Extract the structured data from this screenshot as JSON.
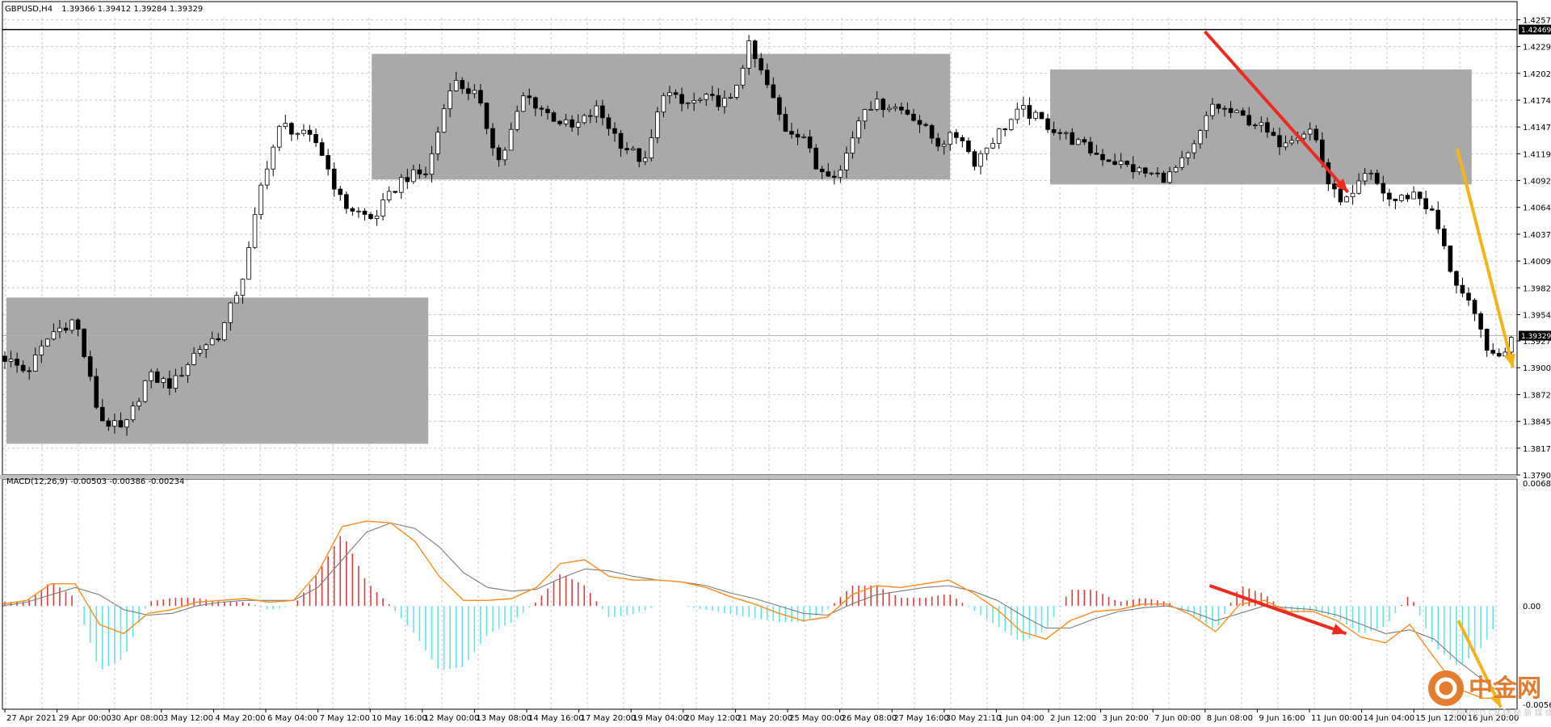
{
  "header": {
    "symbol": "GBPUSD,H4",
    "ohlc": "1.39366 1.39412 1.39284 1.39329",
    "macd_label": "MACD(12,26,9) -0.00503 -0.00386 -0.00234"
  },
  "price_axis": {
    "ticks": [
      "1.42570",
      "1.42295",
      "1.42020",
      "1.41745",
      "1.41470",
      "1.41195",
      "1.40920",
      "1.40645",
      "1.40370",
      "1.40095",
      "1.39820",
      "1.39545",
      "1.39275",
      "1.39000",
      "1.38725",
      "1.38450",
      "1.38175",
      "1.37900"
    ],
    "resistance_label": "1.42469",
    "current_label": "1.39329"
  },
  "macd_axis": {
    "ticks": [
      "0.00688",
      "0.00",
      "-0.0056"
    ]
  },
  "time_axis": {
    "labels": [
      "27 Apr 2021",
      "29 Apr 00:00",
      "30 Apr 08:00",
      "3 May 12:00",
      "4 May 20:00",
      "6 May 04:00",
      "7 May 12:00",
      "10 May 16:00",
      "12 May 00:00",
      "13 May 08:00",
      "14 May 16:00",
      "17 May 20:00",
      "19 May 04:00",
      "20 May 12:00",
      "21 May 20:00",
      "25 May 00:00",
      "26 May 08:00",
      "27 May 16:00",
      "30 May 21:10",
      "1 Jun 04:00",
      "2 Jun 12:00",
      "3 Jun 20:00",
      "7 Jun 00:00",
      "8 Jun 08:00",
      "9 Jun 16:00",
      "11 Jun 00:00",
      "14 Jun 04:00",
      "15 Jun 12:00",
      "16 Jun 20:00"
    ]
  },
  "watermark": {
    "cn": "中金网",
    "en": "CNGOLD.CN 财 经 新 媒 体"
  },
  "colors": {
    "grid": "#c8c8c8",
    "box": "#a9a9a9",
    "candle": "#000000",
    "macd_pos": "#e03c3c",
    "macd_neg": "#5ee6ee",
    "signal": "#ff8c1a",
    "macd_line": "#7b7b7b",
    "arrow1": "#ee2a1e",
    "arrow2": "#f5b31a"
  },
  "chart_data": {
    "type": "candlestick",
    "symbol": "GBPUSD,H4",
    "ylim": [
      1.379,
      1.4259
    ],
    "resistance": 1.42469,
    "current": 1.39329,
    "zones": [
      {
        "from": "27 Apr 2021",
        "to": "10 May 16:00",
        "top": 1.3972,
        "bottom": 1.3822
      },
      {
        "from": "10 May 16:00",
        "to": "27 May 16:00",
        "top": 1.4222,
        "bottom": 1.4093
      },
      {
        "from": "2 Jun 12:00",
        "to": "16 Jun 20:00",
        "top": 1.4206,
        "bottom": 1.4088
      }
    ],
    "close_path": [
      [
        0,
        1.3912
      ],
      [
        40,
        1.3895
      ],
      [
        80,
        1.3935
      ],
      [
        120,
        1.395
      ],
      [
        160,
        1.3848
      ],
      [
        200,
        1.3835
      ],
      [
        240,
        1.3892
      ],
      [
        280,
        1.3882
      ],
      [
        320,
        1.3918
      ],
      [
        360,
        1.3935
      ],
      [
        400,
        1.4
      ],
      [
        430,
        1.4098
      ],
      [
        460,
        1.415
      ],
      [
        520,
        1.413
      ],
      [
        560,
        1.4068
      ],
      [
        610,
        1.4052
      ],
      [
        660,
        1.4095
      ],
      [
        700,
        1.41
      ],
      [
        740,
        1.4195
      ],
      [
        780,
        1.418
      ],
      [
        820,
        1.411
      ],
      [
        860,
        1.418
      ],
      [
        900,
        1.416
      ],
      [
        940,
        1.4145
      ],
      [
        980,
        1.4165
      ],
      [
        1020,
        1.413
      ],
      [
        1060,
        1.411
      ],
      [
        1090,
        1.4185
      ],
      [
        1120,
        1.417
      ],
      [
        1160,
        1.4175
      ],
      [
        1200,
        1.4172
      ],
      [
        1230,
        1.423
      ],
      [
        1260,
        1.419
      ],
      [
        1290,
        1.4145
      ],
      [
        1320,
        1.414
      ],
      [
        1340,
        1.4105
      ],
      [
        1380,
        1.41
      ],
      [
        1420,
        1.417
      ],
      [
        1460,
        1.417
      ],
      [
        1500,
        1.416
      ],
      [
        1540,
        1.413
      ],
      [
        1580,
        1.414
      ],
      [
        1600,
        1.411
      ],
      [
        1640,
        1.414
      ],
      [
        1680,
        1.4165
      ],
      [
        1720,
        1.415
      ],
      [
        1760,
        1.4135
      ],
      [
        1800,
        1.412
      ],
      [
        1840,
        1.411
      ],
      [
        1880,
        1.41
      ],
      [
        1920,
        1.4095
      ],
      [
        1960,
        1.412
      ],
      [
        1995,
        1.417
      ],
      [
        2030,
        1.416
      ],
      [
        2070,
        1.415
      ],
      [
        2100,
        1.413
      ],
      [
        2130,
        1.414
      ],
      [
        2160,
        1.4145
      ],
      [
        2190,
        1.408
      ],
      [
        2220,
        1.407
      ],
      [
        2250,
        1.41
      ],
      [
        2290,
        1.407
      ],
      [
        2330,
        1.408
      ],
      [
        2360,
        1.4055
      ],
      [
        2390,
        1.3995
      ],
      [
        2420,
        1.396
      ],
      [
        2460,
        1.3905
      ],
      [
        2490,
        1.3931
      ]
    ],
    "macd_ylim": [
      -0.0056,
      0.00688
    ],
    "macd_main": [
      [
        0,
        0.0001
      ],
      [
        40,
        0.0003
      ],
      [
        80,
        0.0012
      ],
      [
        120,
        0.0012
      ],
      [
        160,
        -0.001
      ],
      [
        200,
        -0.0015
      ],
      [
        240,
        -0.0004
      ],
      [
        280,
        -0.0002
      ],
      [
        320,
        0.0002
      ],
      [
        360,
        0.0003
      ],
      [
        400,
        0.0004
      ],
      [
        440,
        0.0002
      ],
      [
        480,
        0.0003
      ],
      [
        520,
        0.0018
      ],
      [
        560,
        0.0043
      ],
      [
        600,
        0.0046
      ],
      [
        640,
        0.0045
      ],
      [
        680,
        0.0035
      ],
      [
        720,
        0.0016
      ],
      [
        760,
        0.0003
      ],
      [
        800,
        0.0003
      ],
      [
        840,
        0.0004
      ],
      [
        880,
        0.001
      ],
      [
        920,
        0.0023
      ],
      [
        960,
        0.0025
      ],
      [
        1000,
        0.0016
      ],
      [
        1040,
        0.0014
      ],
      [
        1080,
        0.0014
      ],
      [
        1120,
        0.0013
      ],
      [
        1160,
        0.001
      ],
      [
        1200,
        0.0005
      ],
      [
        1240,
        0.0001
      ],
      [
        1280,
        -0.0004
      ],
      [
        1320,
        -0.0008
      ],
      [
        1360,
        -0.0006
      ],
      [
        1400,
        0.0006
      ],
      [
        1440,
        0.0011
      ],
      [
        1480,
        0.001
      ],
      [
        1520,
        0.0012
      ],
      [
        1560,
        0.0014
      ],
      [
        1600,
        0.0007
      ],
      [
        1640,
        -0.0002
      ],
      [
        1680,
        -0.0014
      ],
      [
        1720,
        -0.0018
      ],
      [
        1760,
        -0.0008
      ],
      [
        1800,
        -0.0003
      ],
      [
        1840,
        -0.0002
      ],
      [
        1880,
        0.0001
      ],
      [
        1920,
        0.0001
      ],
      [
        1960,
        -0.0005
      ],
      [
        2000,
        -0.0014
      ],
      [
        2040,
        0.0001
      ],
      [
        2080,
        0.0003
      ],
      [
        2120,
        -0.0003
      ],
      [
        2160,
        -0.0003
      ],
      [
        2200,
        -0.0008
      ],
      [
        2240,
        -0.0017
      ],
      [
        2280,
        -0.002
      ],
      [
        2320,
        -0.001
      ],
      [
        2360,
        -0.0028
      ],
      [
        2400,
        -0.0045
      ],
      [
        2440,
        -0.005
      ],
      [
        2460,
        -0.005
      ]
    ],
    "macd_signal": [
      [
        0,
        0.0
      ],
      [
        40,
        0.0002
      ],
      [
        80,
        0.0006
      ],
      [
        120,
        0.001
      ],
      [
        160,
        0.0006
      ],
      [
        200,
        -0.0002
      ],
      [
        240,
        -0.0005
      ],
      [
        280,
        -0.0004
      ],
      [
        320,
        0.0
      ],
      [
        360,
        0.0002
      ],
      [
        400,
        0.0003
      ],
      [
        440,
        0.0003
      ],
      [
        480,
        0.0003
      ],
      [
        520,
        0.001
      ],
      [
        560,
        0.0025
      ],
      [
        600,
        0.004
      ],
      [
        640,
        0.0045
      ],
      [
        680,
        0.0042
      ],
      [
        720,
        0.0032
      ],
      [
        760,
        0.0018
      ],
      [
        800,
        0.001
      ],
      [
        840,
        0.0008
      ],
      [
        880,
        0.0009
      ],
      [
        920,
        0.0015
      ],
      [
        960,
        0.002
      ],
      [
        1000,
        0.0019
      ],
      [
        1040,
        0.0016
      ],
      [
        1080,
        0.0014
      ],
      [
        1120,
        0.0013
      ],
      [
        1160,
        0.0011
      ],
      [
        1200,
        0.0007
      ],
      [
        1240,
        0.0004
      ],
      [
        1280,
        0.0
      ],
      [
        1320,
        -0.0004
      ],
      [
        1360,
        -0.0005
      ],
      [
        1400,
        0.0001
      ],
      [
        1440,
        0.0006
      ],
      [
        1480,
        0.0008
      ],
      [
        1520,
        0.001
      ],
      [
        1560,
        0.0011
      ],
      [
        1600,
        0.0008
      ],
      [
        1640,
        0.0003
      ],
      [
        1680,
        -0.0005
      ],
      [
        1720,
        -0.0012
      ],
      [
        1760,
        -0.0012
      ],
      [
        1800,
        -0.0007
      ],
      [
        1840,
        -0.0003
      ],
      [
        1880,
        -0.0001
      ],
      [
        1920,
        0.0
      ],
      [
        1960,
        -0.0003
      ],
      [
        2000,
        -0.0008
      ],
      [
        2040,
        -0.0004
      ],
      [
        2080,
        0.0
      ],
      [
        2120,
        -0.0001
      ],
      [
        2160,
        -0.0002
      ],
      [
        2200,
        -0.0005
      ],
      [
        2240,
        -0.001
      ],
      [
        2280,
        -0.0015
      ],
      [
        2320,
        -0.0013
      ],
      [
        2360,
        -0.0018
      ],
      [
        2400,
        -0.003
      ],
      [
        2440,
        -0.004
      ],
      [
        2460,
        -0.0045
      ]
    ],
    "arrows_price": [
      {
        "x0": 1982,
        "y0": 1.4245,
        "x1": 2218,
        "y1": 1.408
      },
      {
        "x0": 2398,
        "y0": 1.4125,
        "x1": 2490,
        "y1": 1.39
      }
    ],
    "arrows_macd": [
      {
        "x0": 1990,
        "y0": 0.0011,
        "x1": 2215,
        "y1": -0.0015
      },
      {
        "x0": 2400,
        "y0": -0.0008,
        "x1": 2470,
        "y1": -0.0055
      }
    ]
  }
}
